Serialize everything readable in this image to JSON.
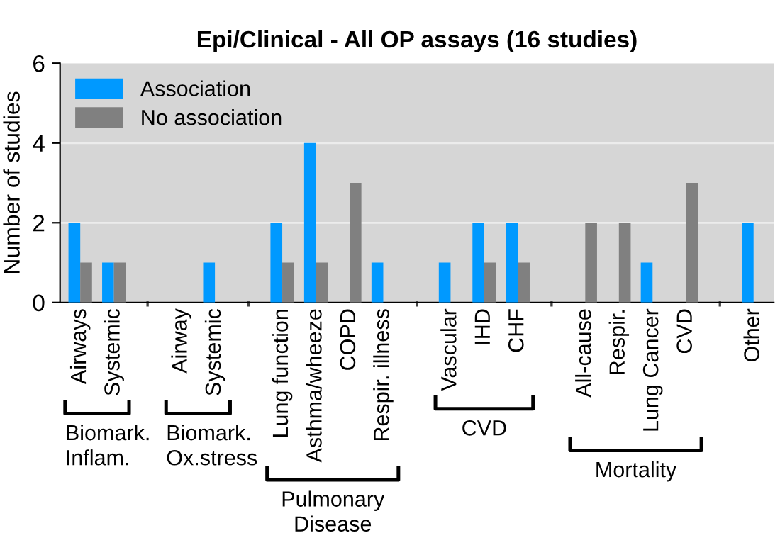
{
  "chart_data": {
    "type": "bar",
    "title": "Epi/Clinical - All OP assays (16 studies)",
    "ylabel": "Number of studies",
    "categories": [
      "Airways",
      "Systemic",
      null,
      "Airway",
      "Systemic",
      null,
      "Lung function",
      "Asthma/wheeze",
      "COPD",
      "Respir. illness",
      null,
      "Vascular",
      "IHD",
      "CHF",
      null,
      "All-cause",
      "Respir.",
      "Lung Cancer",
      "CVD",
      null,
      "Other"
    ],
    "series": [
      {
        "name": "Association",
        "color": "#0099ff",
        "values": [
          2,
          1,
          null,
          0,
          1,
          null,
          2,
          4,
          0,
          1,
          null,
          1,
          2,
          2,
          null,
          0,
          0,
          1,
          0,
          null,
          2
        ]
      },
      {
        "name": "No association",
        "color": "#808080",
        "values": [
          1,
          1,
          null,
          0,
          0,
          null,
          1,
          1,
          3,
          0,
          null,
          0,
          1,
          1,
          null,
          2,
          2,
          0,
          3,
          null,
          0
        ]
      }
    ],
    "ylim": [
      0,
      6
    ],
    "yticks": [
      0,
      2,
      4,
      6
    ],
    "grid": "y",
    "legend": "top left",
    "annotations": [
      "Biomark.\nInflam.",
      "Biomark.\nOx.stress",
      "Pulmonary\nDisease",
      "CVD",
      "Mortality"
    ]
  }
}
